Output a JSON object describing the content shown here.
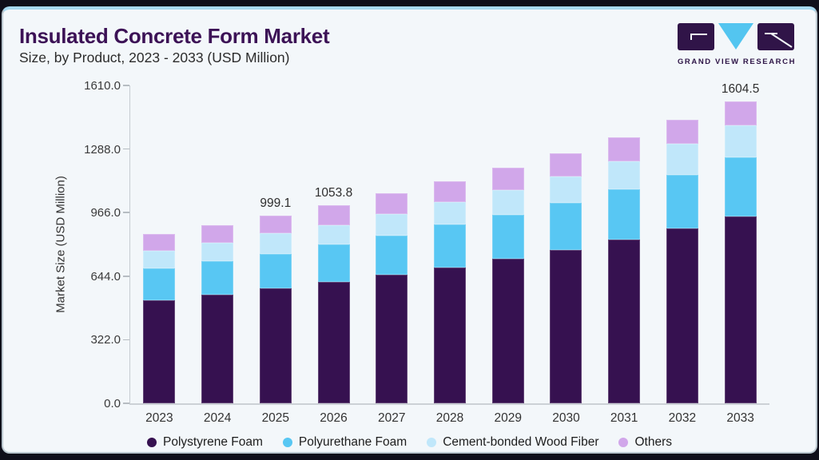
{
  "header": {
    "title": "Insulated Concrete Form Market",
    "subtitle": "Size, by Product, 2023 - 2033 (USD Million)"
  },
  "logo": {
    "text": "GRAND VIEW RESEARCH",
    "block_color": "#301448",
    "triangle_color": "#53c5f0"
  },
  "chart_data": {
    "type": "bar",
    "stacked": true,
    "title": "Insulated Concrete Form Market Size, by Product, 2023 - 2033 (USD Million)",
    "categories": [
      "2023",
      "2024",
      "2025",
      "2026",
      "2027",
      "2028",
      "2029",
      "2030",
      "2031",
      "2032",
      "2033"
    ],
    "series": [
      {
        "name": "Polystyrene Foam",
        "color": "#361150",
        "values": [
          548.3,
          576.7,
          612.7,
          645.4,
          682.7,
          721.0,
          767.6,
          817.2,
          870.6,
          930.1,
          992.8
        ]
      },
      {
        "name": "Polyurethane Foam",
        "color": "#58c7f3",
        "values": [
          169.6,
          181.1,
          181.2,
          201.3,
          207.9,
          230.3,
          233.2,
          250.2,
          267.2,
          285.7,
          316.9
        ]
      },
      {
        "name": "Cement-bonded Wood Fiber",
        "color": "#c0e7fa",
        "values": [
          95.0,
          94.6,
          109.1,
          101.5,
          114.4,
          120.4,
          134.4,
          138.3,
          148.5,
          163.8,
          167.3
        ]
      },
      {
        "name": "Others",
        "color": "#d1a7ea",
        "values": [
          89.0,
          96.0,
          96.1,
          105.6,
          111.6,
          110.2,
          115.8,
          124.7,
          125.8,
          125.9,
          127.5
        ]
      }
    ],
    "totals": [
      901.9,
      948.4,
      999.1,
      1053.8,
      1116.6,
      1181.9,
      1251.0,
      1330.4,
      1412.1,
      1505.5,
      1604.5
    ],
    "annotations": [
      {
        "category": "2025",
        "text": "999.1"
      },
      {
        "category": "2026",
        "text": "1053.8"
      },
      {
        "category": "2033",
        "text": "1604.5"
      }
    ],
    "xlabel": "",
    "ylabel": "Market Size (USD Million)",
    "ylim": [
      0,
      1610
    ],
    "yticks": [
      "0.0",
      "322.0",
      "644.0",
      "966.0",
      "1288.0",
      "1610.0"
    ],
    "render_max": 1690,
    "grid": false,
    "legend_position": "bottom"
  }
}
